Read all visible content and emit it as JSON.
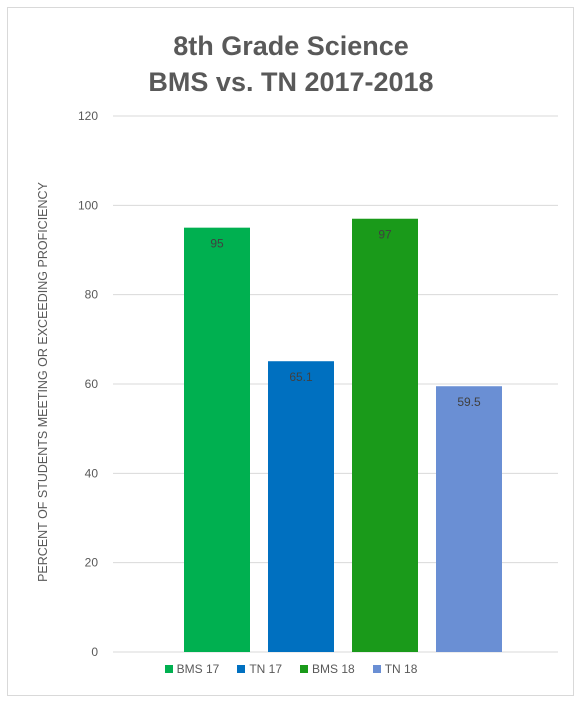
{
  "chart_data": {
    "type": "bar",
    "title_lines": [
      "8th Grade Science",
      "BMS vs. TN 2017-2018"
    ],
    "ylabel": "PERCENT OF STUDENTS MEETING OR EXCEEDING PROFICIENCY",
    "xlabel": "",
    "ylim": [
      0,
      120
    ],
    "yticks": [
      0,
      20,
      40,
      60,
      80,
      100,
      120
    ],
    "grid": true,
    "legend_position": "bottom",
    "series": [
      {
        "name": "BMS 17",
        "value": 95,
        "label": "95",
        "color": "#00b050"
      },
      {
        "name": "TN 17",
        "value": 65.1,
        "label": "65.1",
        "color": "#0070c0"
      },
      {
        "name": "BMS 18",
        "value": 97,
        "label": "97",
        "color": "#1a9a1a"
      },
      {
        "name": "TN 18",
        "value": 59.5,
        "label": "59.5",
        "color": "#6a8fd4"
      }
    ]
  }
}
